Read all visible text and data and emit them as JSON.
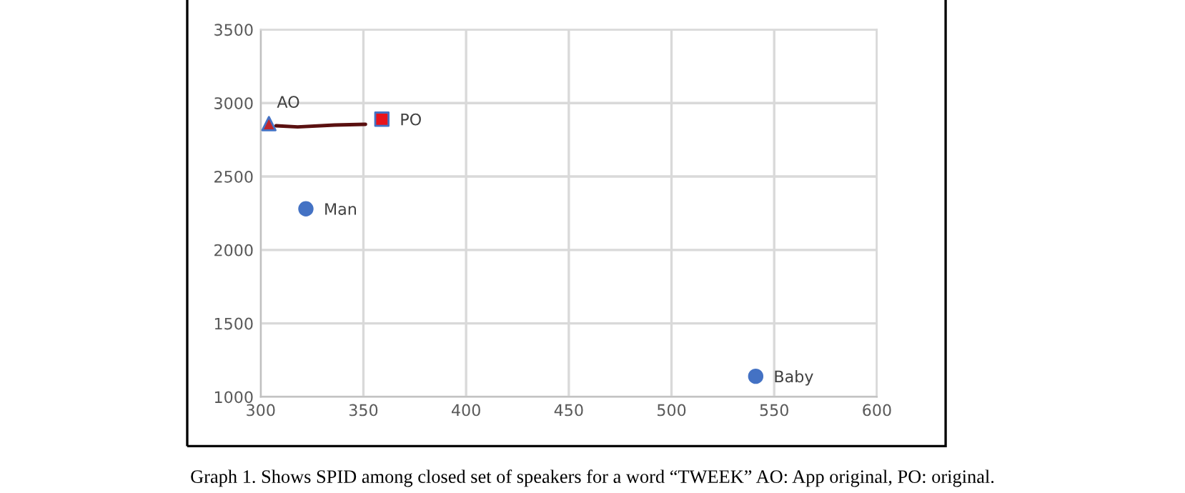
{
  "chart_data": {
    "type": "scatter",
    "series": [
      {
        "name": "AO",
        "color": "#c0282d",
        "marker": "triangle",
        "x": [
          304
        ],
        "values": [
          2860
        ]
      },
      {
        "name": "PO",
        "color": "#e8141c",
        "marker": "square",
        "x": [
          359
        ],
        "values": [
          2890
        ]
      },
      {
        "name": "Man",
        "color": "#4472c4",
        "marker": "circle",
        "x": [
          322
        ],
        "values": [
          2280
        ]
      },
      {
        "name": "Baby",
        "color": "#4472c4",
        "marker": "circle",
        "x": [
          541
        ],
        "values": [
          1140
        ]
      }
    ],
    "xlim": [
      300,
      600
    ],
    "xticks": [
      300,
      350,
      400,
      450,
      500,
      550,
      600
    ],
    "ylim": [
      1000,
      3500
    ],
    "yticks": [
      1000,
      1500,
      2000,
      2500,
      3000,
      3500
    ],
    "grid": true,
    "legend": false,
    "annotations": [
      "Graph 1. Shows SPID among closed set of speakers for a word “TWEEK” AO: App original, PO: original."
    ]
  }
}
